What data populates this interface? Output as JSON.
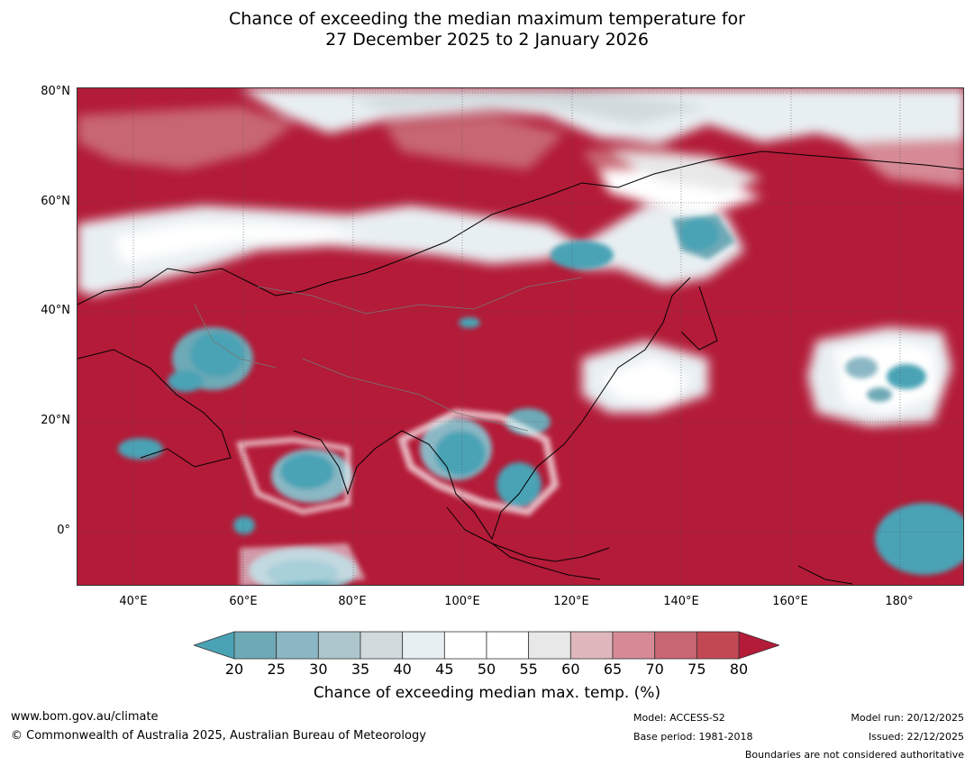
{
  "title_line1": "Chance of exceeding the median maximum temperature for",
  "title_line2": "27 December 2025 to 2 January 2026",
  "map": {
    "lat_labels": [
      "80°N",
      "60°N",
      "40°N",
      "20°N",
      "0°"
    ],
    "lon_labels": [
      "40°E",
      "60°E",
      "80°E",
      "100°E",
      "120°E",
      "140°E",
      "160°E",
      "180°"
    ],
    "lon_range": [
      30,
      192
    ],
    "lat_range": [
      -10,
      81
    ]
  },
  "colorbar": {
    "ticks": [
      "20",
      "25",
      "30",
      "35",
      "40",
      "45",
      "50",
      "55",
      "60",
      "65",
      "70",
      "75",
      "80"
    ],
    "colors": [
      "#4aa3b5",
      "#6ea9b6",
      "#8bb7c4",
      "#adc6cc",
      "#d1dadd",
      "#e8eff2",
      "#ffffff",
      "#ffffff",
      "#e8e8e8",
      "#dfb7bd",
      "#d68a96",
      "#c86672",
      "#c24854",
      "#b31b38"
    ],
    "label": "Chance of exceeding median max. temp. (%)"
  },
  "footer": {
    "website": "www.bom.gov.au/climate",
    "copyright": "© Commonwealth of Australia 2025, Australian Bureau of Meteorology",
    "model": "Model: ACCESS-S2",
    "base_period": "Base period: 1981-2018",
    "model_run": "Model run: 20/12/2025",
    "issued": "Issued: 22/12/2025",
    "disclaimer": "Boundaries are not considered authoritative"
  }
}
